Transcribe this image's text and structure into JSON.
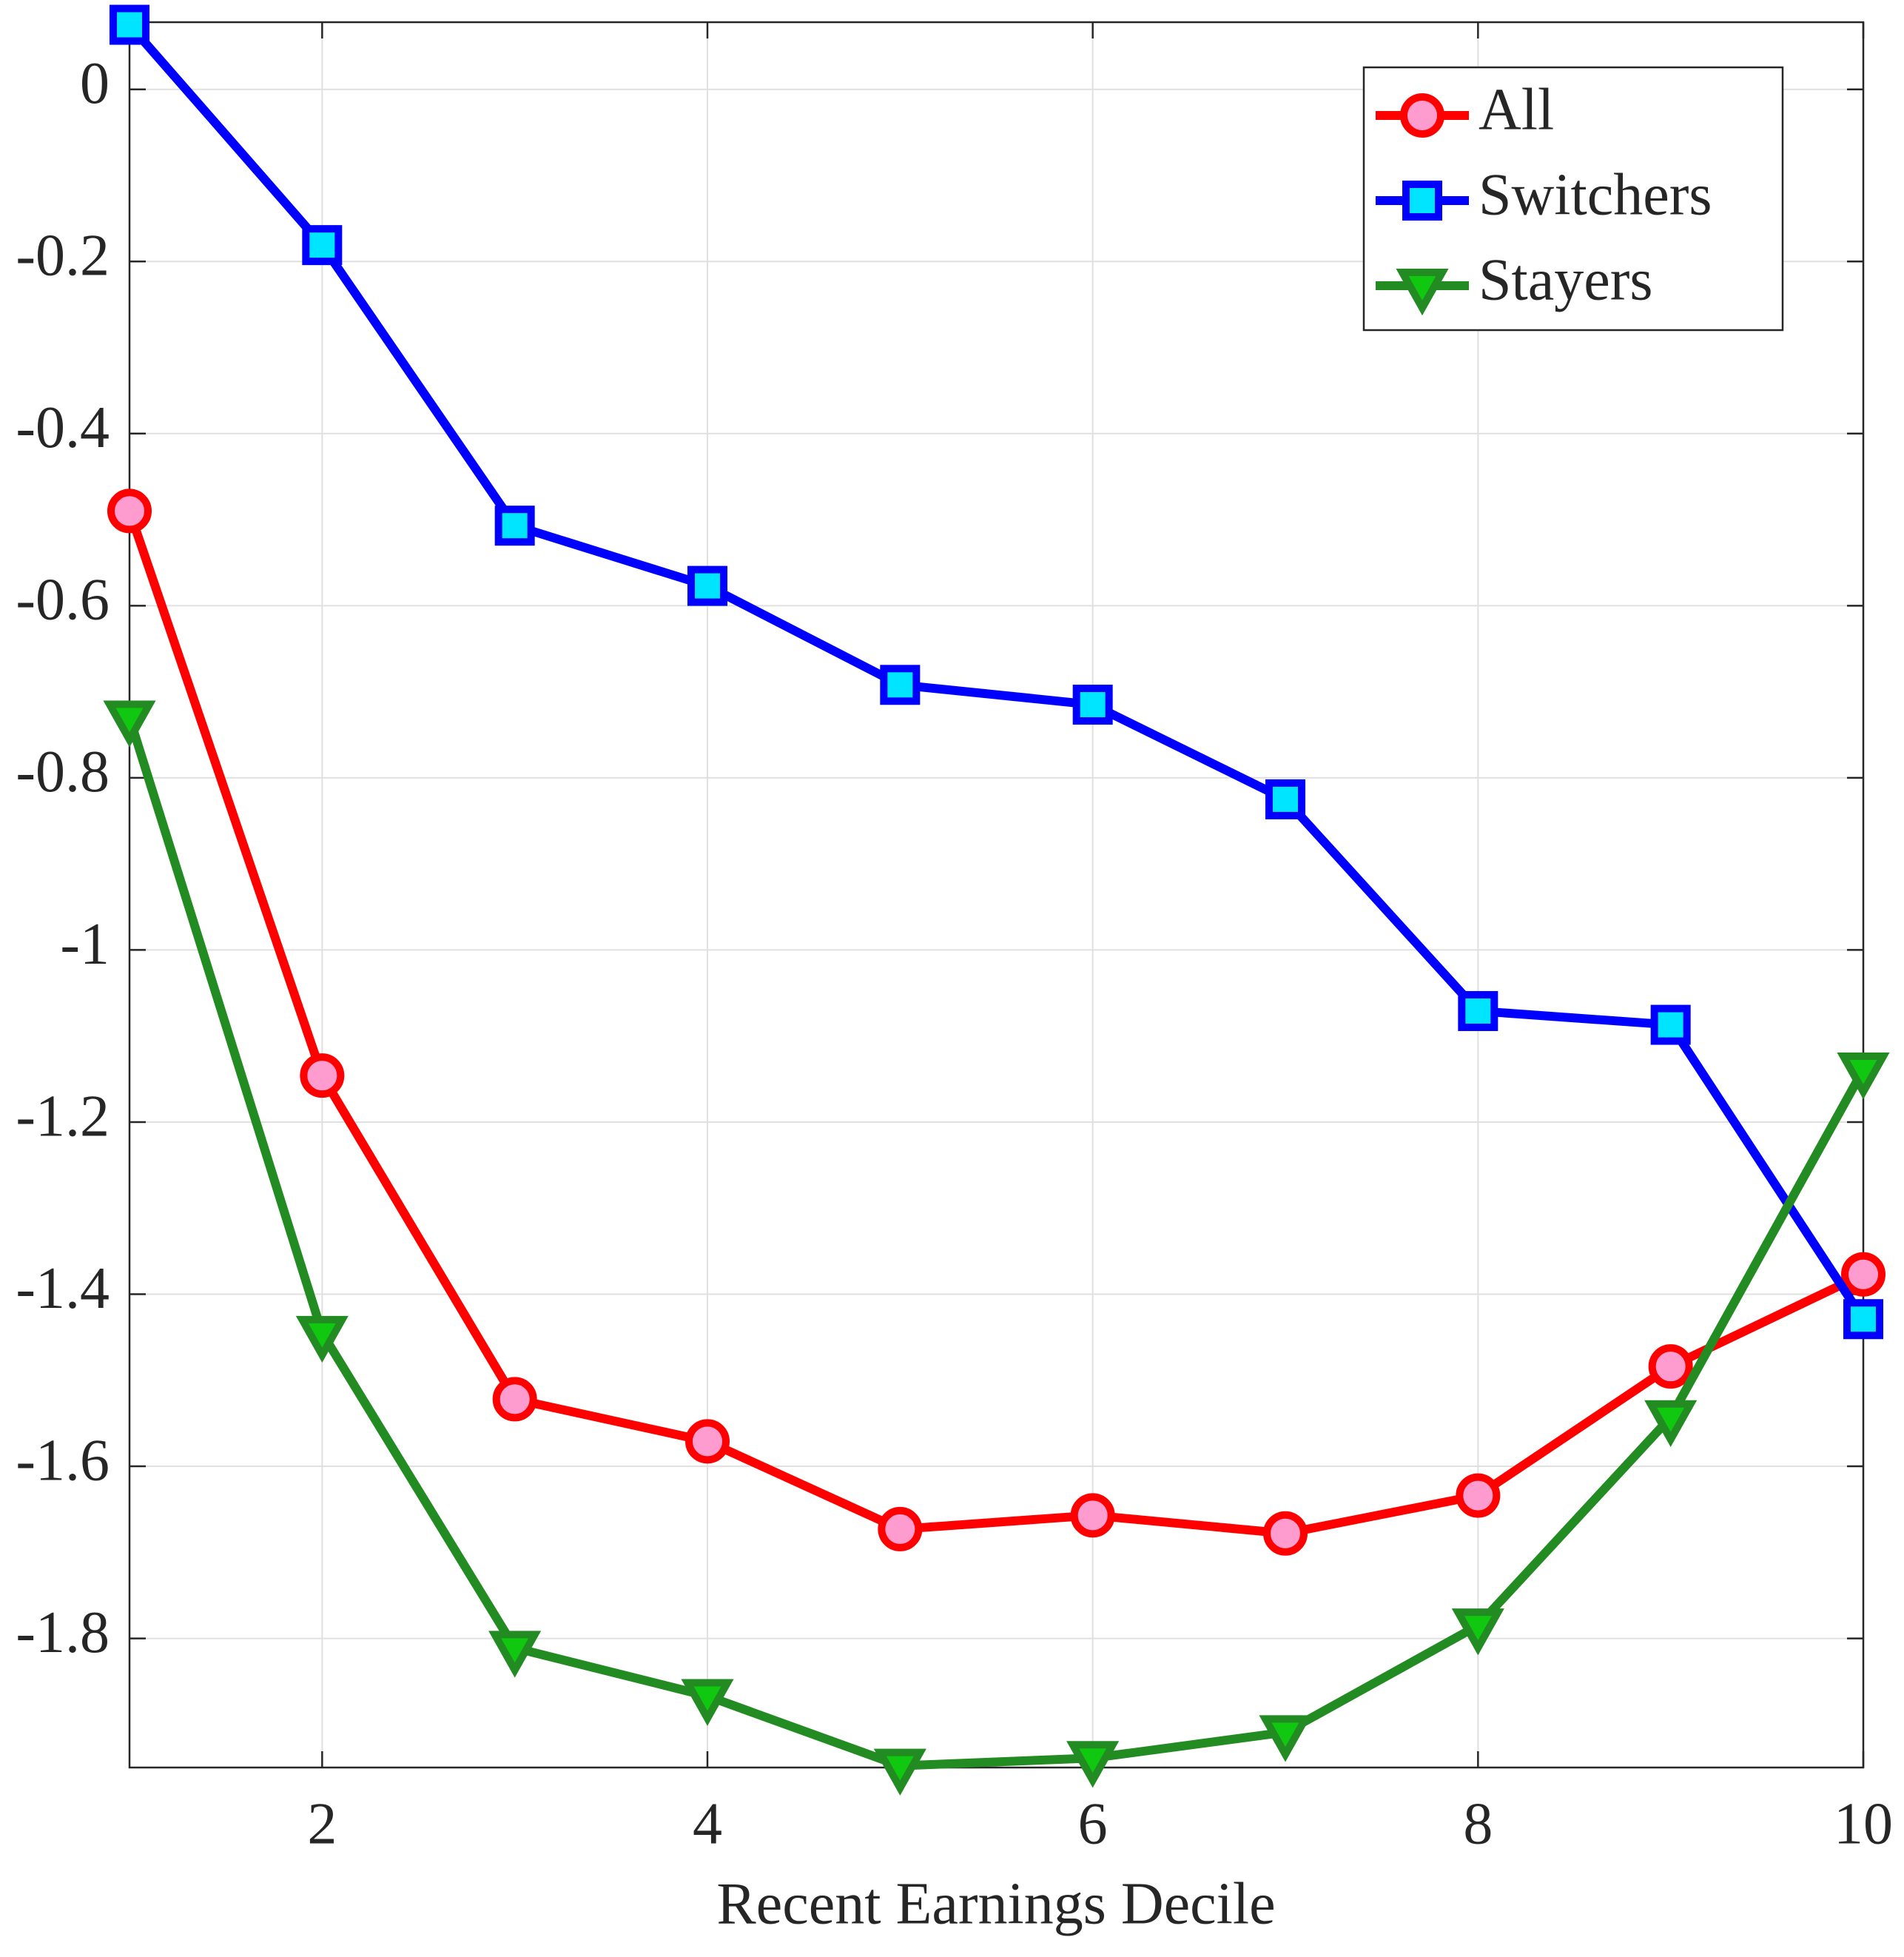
{
  "chart_data": {
    "type": "line",
    "x_label": "Recent Earnings Decile",
    "x": [
      1,
      2,
      3,
      4,
      5,
      6,
      7,
      8,
      9,
      10
    ],
    "series": [
      {
        "name": "All",
        "color": "#ff0000",
        "marker": "circle",
        "marker_face": "#ff9ccf",
        "values": [
          -0.49,
          -1.146,
          -1.522,
          -1.571,
          -1.673,
          -1.657,
          -1.678,
          -1.634,
          -1.484,
          -1.377
        ]
      },
      {
        "name": "Switchers",
        "color": "#0000ff",
        "marker": "square",
        "marker_face": "#00e5ff",
        "values": [
          0.075,
          -0.181,
          -0.507,
          -0.577,
          -0.692,
          -0.715,
          -0.825,
          -1.071,
          -1.087,
          -1.429
        ]
      },
      {
        "name": "Stayers",
        "color": "#228b22",
        "marker": "triangle-down",
        "marker_face": "#11c811",
        "values": [
          -0.73,
          -1.445,
          -1.811,
          -1.867,
          -1.948,
          -1.939,
          -1.909,
          -1.785,
          -1.543,
          -1.139
        ]
      }
    ],
    "xlim": [
      1,
      10
    ],
    "xticks": [
      2,
      4,
      6,
      8,
      10
    ],
    "ylim": [
      -1.95,
      0.078
    ],
    "yticks": [
      0,
      -0.2,
      -0.4,
      -0.6,
      -0.8,
      -1,
      -1.2,
      -1.4,
      -1.6,
      -1.8
    ],
    "grid": true,
    "legend": "top-right"
  }
}
